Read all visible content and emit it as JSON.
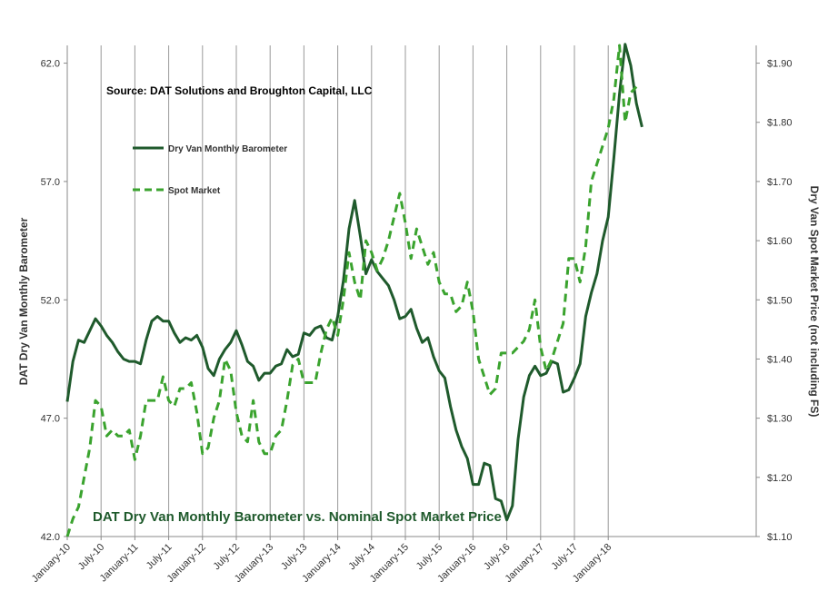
{
  "chart_data": {
    "type": "line",
    "title": "DAT Dry Van Monthly Barometer vs. Nominal Spot Market Price",
    "source": "Source: DAT Solutions and Broughton Capital, LLC",
    "ylabel_left": "DAT Dry Van Monthly Barometer",
    "ylabel_right": "Dry Van Spot Market Price (not including FS)",
    "ylim_left": [
      42.0,
      62.0
    ],
    "ylim_right": [
      1.1,
      1.9
    ],
    "yticks_left": [
      "42.0",
      "47.0",
      "52.0",
      "57.0",
      "62.0"
    ],
    "yticks_right": [
      "$1.10",
      "$1.20",
      "$1.30",
      "$1.40",
      "$1.50",
      "$1.60",
      "$1.70",
      "$1.80",
      "$1.90"
    ],
    "xtick_labels": [
      "January-10",
      "July-10",
      "January-11",
      "July-11",
      "January-12",
      "July-12",
      "January-13",
      "July-13",
      "January-14",
      "July-14",
      "January-15",
      "July-15",
      "January-16",
      "July-16",
      "January-17",
      "July-17",
      "January-18"
    ],
    "grid": "vertical",
    "legend_position": "top-left",
    "x_start": "2010-01",
    "series": [
      {
        "name": "Dry Van Monthly Barometer",
        "axis": "left",
        "style": "solid",
        "color": "#1f5a2c",
        "values": [
          47.7,
          49.4,
          50.3,
          50.2,
          50.7,
          51.2,
          50.9,
          50.5,
          50.2,
          49.8,
          49.5,
          49.4,
          49.4,
          49.3,
          50.3,
          51.1,
          51.3,
          51.1,
          51.1,
          50.6,
          50.2,
          50.4,
          50.3,
          50.5,
          50.0,
          49.1,
          48.8,
          49.5,
          49.9,
          50.2,
          50.7,
          50.1,
          49.4,
          49.2,
          48.6,
          48.9,
          48.9,
          49.2,
          49.3,
          49.9,
          49.6,
          49.7,
          50.6,
          50.5,
          50.8,
          50.9,
          50.4,
          50.3,
          51.3,
          52.8,
          55.0,
          56.2,
          54.7,
          53.1,
          53.7,
          53.2,
          52.9,
          52.6,
          52.0,
          51.2,
          51.3,
          51.6,
          50.8,
          50.2,
          50.4,
          49.6,
          49.0,
          48.7,
          47.5,
          46.5,
          45.8,
          45.3,
          44.2,
          44.2,
          45.1,
          45.0,
          43.6,
          43.5,
          42.7,
          43.3,
          46.1,
          47.9,
          48.8,
          49.2,
          48.8,
          48.9,
          49.4,
          49.3,
          48.1,
          48.2,
          48.7,
          49.3,
          51.3,
          52.3,
          53.1,
          54.5,
          55.5,
          58.0,
          60.7,
          62.8,
          61.9,
          60.3,
          59.3
        ]
      },
      {
        "name": "Spot Market",
        "axis": "right",
        "style": "dashed",
        "color": "#3aa32e",
        "values": [
          1.1,
          1.13,
          1.15,
          1.2,
          1.25,
          1.33,
          1.32,
          1.27,
          1.28,
          1.27,
          1.27,
          1.28,
          1.23,
          1.27,
          1.33,
          1.33,
          1.33,
          1.37,
          1.33,
          1.32,
          1.35,
          1.35,
          1.36,
          1.31,
          1.24,
          1.25,
          1.3,
          1.33,
          1.4,
          1.38,
          1.31,
          1.27,
          1.26,
          1.33,
          1.26,
          1.24,
          1.24,
          1.27,
          1.28,
          1.33,
          1.39,
          1.4,
          1.36,
          1.36,
          1.36,
          1.41,
          1.45,
          1.47,
          1.44,
          1.5,
          1.58,
          1.53,
          1.5,
          1.6,
          1.58,
          1.55,
          1.57,
          1.6,
          1.64,
          1.68,
          1.63,
          1.57,
          1.62,
          1.59,
          1.56,
          1.58,
          1.53,
          1.51,
          1.51,
          1.48,
          1.49,
          1.53,
          1.48,
          1.4,
          1.37,
          1.34,
          1.35,
          1.41,
          1.41,
          1.41,
          1.42,
          1.43,
          1.45,
          1.5,
          1.42,
          1.38,
          1.4,
          1.43,
          1.46,
          1.57,
          1.57,
          1.53,
          1.59,
          1.7,
          1.73,
          1.76,
          1.79,
          1.84,
          1.93,
          1.8,
          1.85,
          1.86
        ]
      }
    ]
  }
}
